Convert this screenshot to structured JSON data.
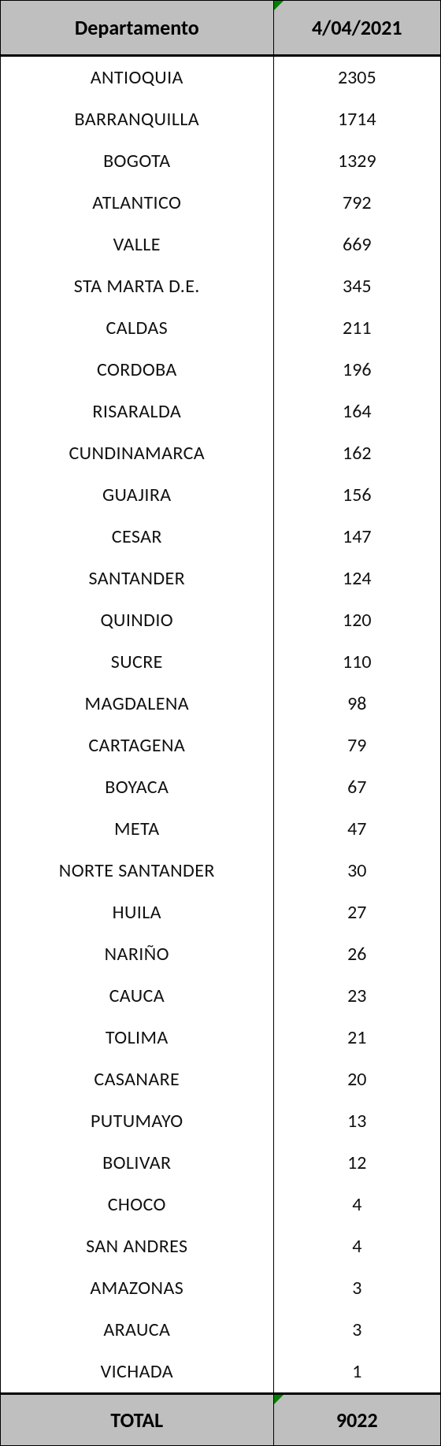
{
  "table": {
    "type": "table",
    "columns": [
      "Departamento",
      "4/04/2021"
    ],
    "rows": [
      [
        "ANTIOQUIA",
        "2305"
      ],
      [
        "BARRANQUILLA",
        "1714"
      ],
      [
        "BOGOTA",
        "1329"
      ],
      [
        "ATLANTICO",
        "792"
      ],
      [
        "VALLE",
        "669"
      ],
      [
        "STA MARTA D.E.",
        "345"
      ],
      [
        "CALDAS",
        "211"
      ],
      [
        "CORDOBA",
        "196"
      ],
      [
        "RISARALDA",
        "164"
      ],
      [
        "CUNDINAMARCA",
        "162"
      ],
      [
        "GUAJIRA",
        "156"
      ],
      [
        "CESAR",
        "147"
      ],
      [
        "SANTANDER",
        "124"
      ],
      [
        "QUINDIO",
        "120"
      ],
      [
        "SUCRE",
        "110"
      ],
      [
        "MAGDALENA",
        "98"
      ],
      [
        "CARTAGENA",
        "79"
      ],
      [
        "BOYACA",
        "67"
      ],
      [
        "META",
        "47"
      ],
      [
        "NORTE SANTANDER",
        "30"
      ],
      [
        "HUILA",
        "27"
      ],
      [
        "NARIÑO",
        "26"
      ],
      [
        "CAUCA",
        "23"
      ],
      [
        "TOLIMA",
        "21"
      ],
      [
        "CASANARE",
        "20"
      ],
      [
        "PUTUMAYO",
        "13"
      ],
      [
        "BOLIVAR",
        "12"
      ],
      [
        "CHOCO",
        "4"
      ],
      [
        "SAN ANDRES",
        "4"
      ],
      [
        "AMAZONAS",
        "3"
      ],
      [
        "ARAUCA",
        "3"
      ],
      [
        "VICHADA",
        "1"
      ]
    ],
    "footer": [
      "TOTAL",
      "9022"
    ],
    "header_bg": "#bfbfbf",
    "footer_bg": "#bfbfbf",
    "body_bg": "#ffffff",
    "border_color": "#000000",
    "text_color": "#111111",
    "header_fontsize": 26,
    "body_fontsize": 24,
    "footer_fontsize": 26,
    "col_widths_pct": [
      62,
      38
    ],
    "corner_marker_color": "#008000"
  }
}
